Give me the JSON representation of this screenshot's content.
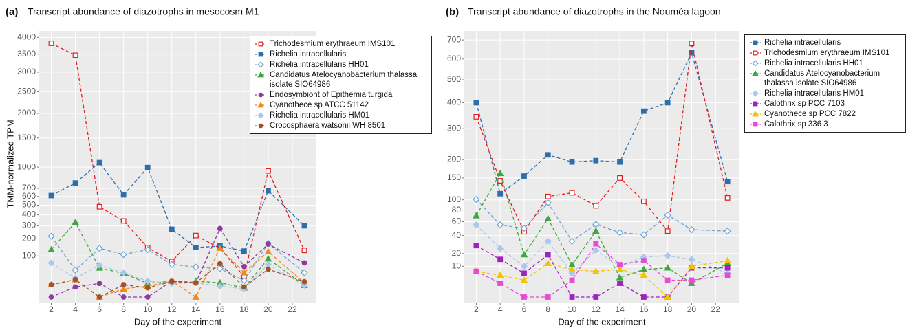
{
  "chart_data": [
    {
      "type": "line",
      "label": "(a)",
      "title": "Transcript abundance of diazotrophs in mesocosm M1",
      "xlabel": "Day of the experiment",
      "ylabel": "TMM-normalized TPM",
      "yscale": "sqrt",
      "grid": true,
      "legend": "upper right",
      "x": [
        2,
        4,
        6,
        8,
        10,
        12,
        14,
        16,
        18,
        20,
        23
      ],
      "xlim": [
        1,
        24
      ],
      "xticks": [
        2,
        4,
        6,
        8,
        10,
        12,
        14,
        16,
        18,
        20,
        22
      ],
      "ylim": [
        0,
        4200
      ],
      "yticks": [
        100,
        200,
        300,
        400,
        500,
        600,
        700,
        1000,
        1500,
        2000,
        2500,
        3000,
        3500,
        4000
      ],
      "series": [
        {
          "name": "Trichodesmium erythraeum IMS101",
          "color": "#e41a1c",
          "marker": "open-square",
          "values": [
            3819,
            3467,
            483,
            343,
            145,
            75,
            224,
            141,
            25,
            942,
            129
          ]
        },
        {
          "name": "Richelia intracellularis",
          "color": "#2c6fab",
          "marker": "square",
          "values": [
            610,
            771,
            1071,
            619,
            994,
            272,
            145,
            154,
            125,
            670,
            301
          ]
        },
        {
          "name": "Richelia intracellularis HH01",
          "color": "#6fa3d6",
          "marker": "open-diamond",
          "values": [
            219,
            43,
            141,
            107,
            133,
            63,
            53,
            48,
            16,
            171,
            35
          ]
        },
        {
          "name": "Candidatus Atelocyanobacterium thalassa isolate SIO64986",
          "color": "#3ea83e",
          "marker": "triangle",
          "values": [
            133,
            331,
            50,
            33,
            11,
            15,
            15,
            12,
            5,
            87,
            8
          ]
        },
        {
          "name": "Endosymbiont of Epithemia turgida",
          "color": "#8e3a9e",
          "marker": "circle",
          "values": [
            0,
            6,
            11,
            0,
            0,
            15,
            12,
            278,
            55,
            166,
            69
          ]
        },
        {
          "name": "Cyanothece sp ATCC 51142",
          "color": "#f28a1a",
          "marker": "triangle",
          "values": [
            9,
            18,
            0,
            4,
            7,
            15,
            0,
            141,
            35,
            122,
            12
          ]
        },
        {
          "name": "Richelia intracellularis HM01",
          "color": "#a9c9ec",
          "marker": "diamond",
          "values": [
            69,
            21,
            60,
            35,
            15,
            11,
            12,
            7,
            4,
            63,
            8
          ]
        },
        {
          "name": "Crocosphaera watsonii WH 8501",
          "color": "#a0522d",
          "marker": "circle",
          "values": [
            9,
            18,
            0,
            9,
            5,
            14,
            12,
            66,
            6,
            46,
            14
          ]
        }
      ]
    },
    {
      "type": "line",
      "label": "(b)",
      "title": "Transcript abundance of diazotrophs in the Nouméa lagoon",
      "xlabel": "Day of the experiment",
      "yscale": "sqrt",
      "grid": true,
      "legend": "upper right",
      "x": [
        2,
        4,
        6,
        8,
        10,
        12,
        14,
        16,
        18,
        20,
        23
      ],
      "xlim": [
        1,
        24
      ],
      "xticks": [
        2,
        4,
        6,
        8,
        10,
        12,
        14,
        16,
        18,
        20,
        22
      ],
      "ylim": [
        0,
        750
      ],
      "yticks": [
        10,
        20,
        40,
        60,
        80,
        100,
        150,
        200,
        300,
        400,
        500,
        600,
        700
      ],
      "series": [
        {
          "name": "Richelia intracellularis",
          "color": "#2c6fab",
          "marker": "square",
          "values": [
            400,
            113,
            155,
            214,
            193,
            197,
            193,
            366,
            400,
            632,
            141
          ]
        },
        {
          "name": "Trichodesmium erythraeum IMS101",
          "color": "#e41a1c",
          "marker": "open-square",
          "values": [
            344,
            143,
            45,
            107,
            115,
            88,
            150,
            97,
            46,
            681,
            104
          ]
        },
        {
          "name": "Richelia intracellularis HH01",
          "color": "#6fa3d6",
          "marker": "open-diamond",
          "values": [
            101,
            55,
            50,
            94,
            33,
            56,
            44,
            41,
            71,
            48,
            46
          ]
        },
        {
          "name": "Candidatus Atelocyanobacterium thalassa isolate SIO64986",
          "color": "#3ea83e",
          "marker": "triangle",
          "values": [
            70,
            162,
            19,
            65,
            11,
            46,
            4,
            8,
            9,
            2,
            12
          ]
        },
        {
          "name": "Richelia intracellularis HM01",
          "color": "#a9c9ec",
          "marker": "diamond",
          "values": [
            55,
            25,
            10,
            33,
            6,
            23,
            10,
            17,
            18,
            15,
            6
          ]
        },
        {
          "name": "Calothrix sp PCC 7103",
          "color": "#a020c0",
          "marker": "square",
          "values": [
            28,
            15,
            6,
            19,
            0,
            0,
            2,
            0,
            0,
            9,
            9
          ]
        },
        {
          "name": "Cyanothece sp PCC 7822",
          "color": "#f5c400",
          "marker": "triangle",
          "values": [
            7,
            5,
            3,
            12,
            8,
            7,
            8,
            5,
            0,
            10,
            14
          ]
        },
        {
          "name": "Calothrix sp 336 3",
          "color": "#e64ad6",
          "marker": "square",
          "values": [
            7,
            2,
            0,
            0,
            3,
            30,
            11,
            14,
            3,
            3,
            5
          ]
        }
      ]
    }
  ]
}
